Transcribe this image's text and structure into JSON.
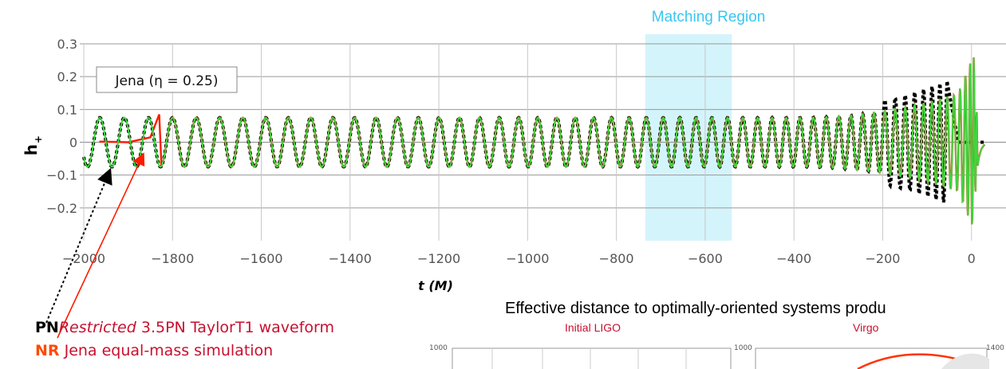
{
  "chart_data": {
    "type": "line",
    "xlabel": "t (M)",
    "ylabel": "h+",
    "xlim": [
      -2000,
      40
    ],
    "ylim": [
      -0.3,
      0.3
    ],
    "xticks": [
      -2000,
      -1800,
      -1600,
      -1400,
      -1200,
      -1000,
      -800,
      -600,
      -400,
      -200,
      0
    ],
    "xtick_labels": [
      "−2000",
      "−1800",
      "−1600",
      "−1400",
      "−1200",
      "−1000",
      "−800",
      "−600",
      "−400",
      "−200",
      "0"
    ],
    "yticks": [
      0.3,
      0.2,
      0.1,
      0,
      -0.1,
      -0.2
    ],
    "ytick_labels": [
      "0.3",
      "0.2",
      "0.1",
      "0",
      "−0.1",
      "−0.2"
    ],
    "grid": true,
    "label_box": "Jena (η = 0.25)",
    "matching_region": {
      "label": "Matching Region",
      "x_start": -735,
      "x_end": -540
    },
    "series": [
      {
        "key": "pn",
        "style": "black dashed",
        "peak_amp": 0.075,
        "chirp_time": -55
      },
      {
        "key": "nr",
        "style": "red solid",
        "start_x": -1830,
        "merger_x": 0,
        "peak_amp": 0.27
      },
      {
        "key": "fit",
        "style": "green solid",
        "start_x": -2000,
        "merger_x": 0,
        "peak_amp": 0.27
      }
    ],
    "colors": {
      "pn": "#000000",
      "nr": "#ff1a00",
      "fit": "#3ed63e",
      "region": "#d4f4fb",
      "region_label": "#39c6ee",
      "grid": "#999999",
      "pn_text": "#c8102e"
    }
  },
  "legend": {
    "pn_tag": "PN",
    "pn_italic": "Restricted",
    "pn_rest": " 3.5PN TaylorT1 waveform",
    "nr_tag": "NR",
    "nr_rest": " Jena equal-mass simulation"
  },
  "inset": {
    "title": "Effective distance to optimally-oriented systems produ",
    "panel_left_title": "Initial LIGO",
    "panel_right_title": "Virgo",
    "tick_left": "1000",
    "tick_mid": "1000",
    "tick_right": "1400"
  }
}
